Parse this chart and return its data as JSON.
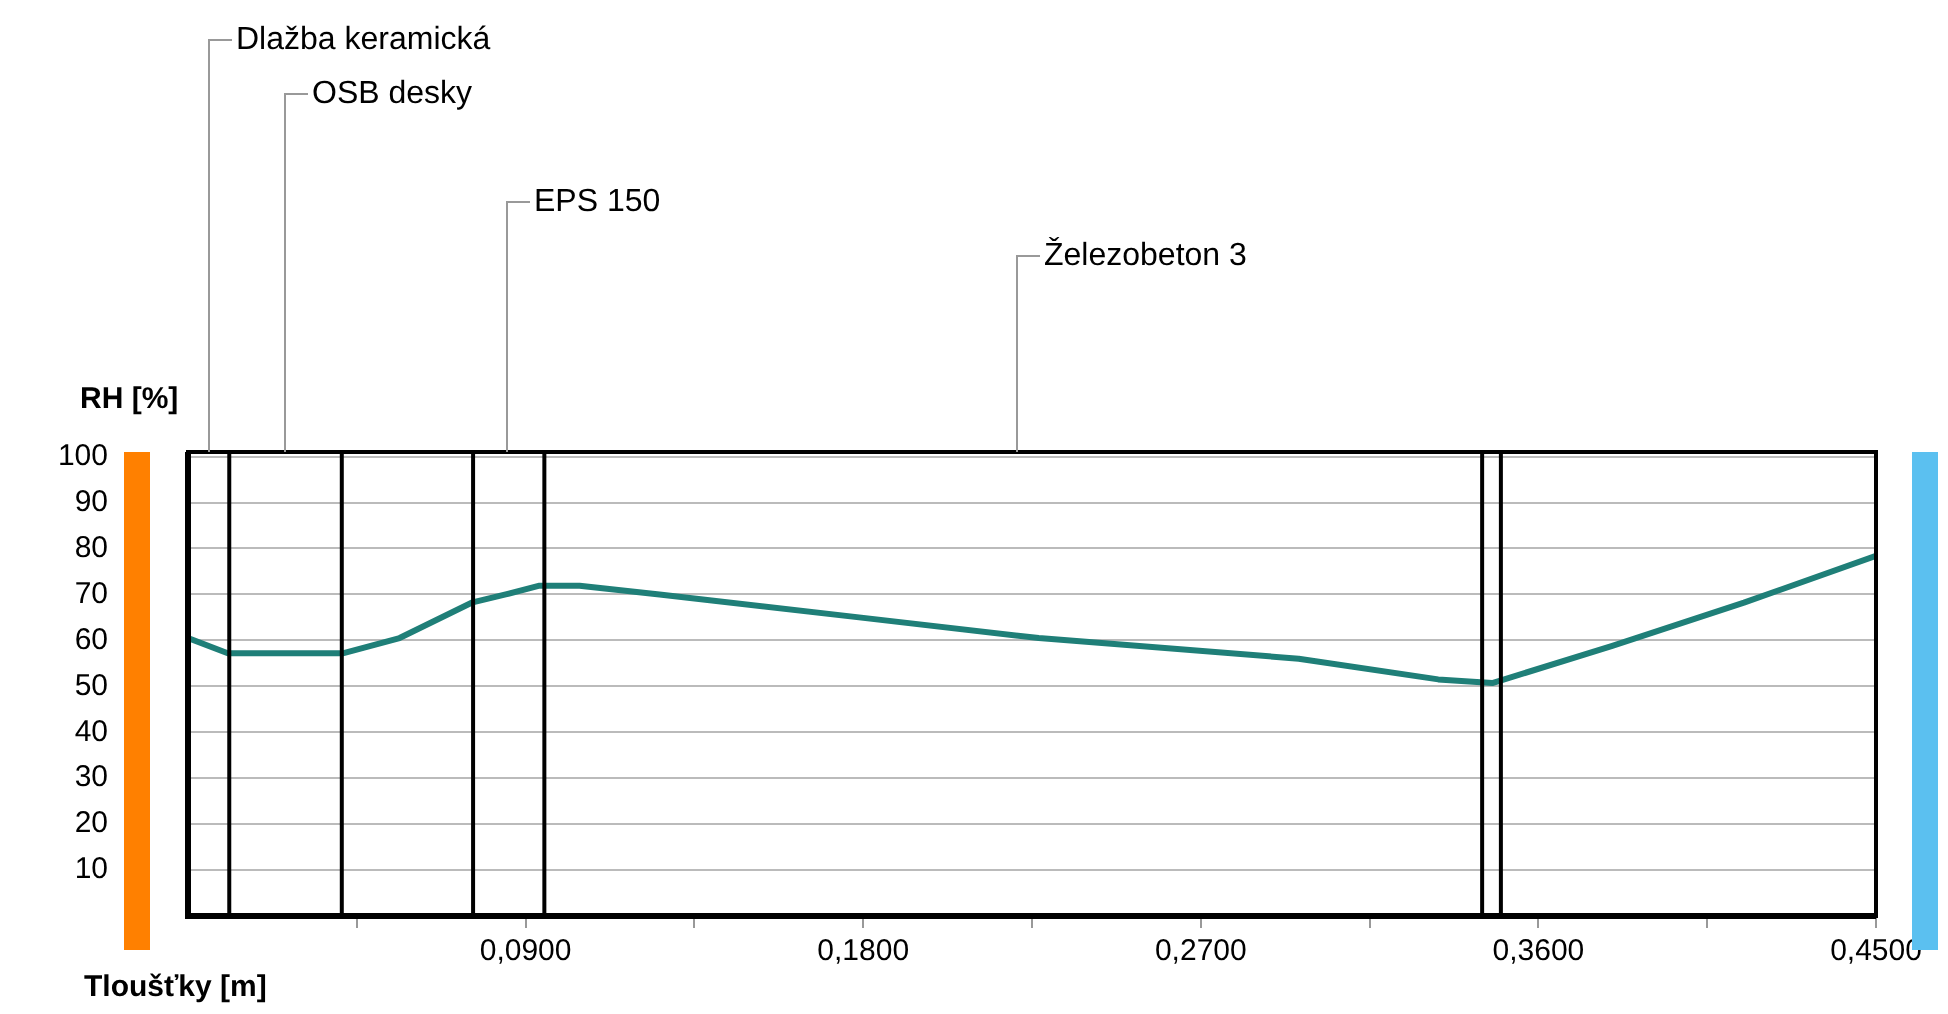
{
  "chart_data": {
    "type": "line",
    "xlabel": "Tloušťky [m]",
    "ylabel": "RH [%]",
    "x": [
      0,
      0.0106,
      0.0415,
      0.0564,
      0.0756,
      0.0847,
      0.0937,
      0.1044,
      0.1257,
      0.1789,
      0.2268,
      0.2961,
      0.3333,
      0.3477,
      0.3797,
      0.4148,
      0.45
    ],
    "series": [
      {
        "color": "#1f7f78",
        "values": [
          60.5,
          57.2,
          57.2,
          60.5,
          68.2,
          70,
          71.9,
          71.9,
          70,
          65,
          60.5,
          56,
          51.5,
          50.7,
          58.8,
          68.2,
          78.4
        ]
      }
    ],
    "xlim": [
      0,
      0.45
    ],
    "xticks": [
      {
        "value": 0.045,
        "label": null
      },
      {
        "value": 0.09,
        "label": "0,0900"
      },
      {
        "value": 0.135,
        "label": null
      },
      {
        "value": 0.18,
        "label": "0,1800"
      },
      {
        "value": 0.225,
        "label": null
      },
      {
        "value": 0.27,
        "label": "0,2700"
      },
      {
        "value": 0.315,
        "label": null
      },
      {
        "value": 0.36,
        "label": "0,3600"
      },
      {
        "value": 0.405,
        "label": null
      },
      {
        "value": 0.45,
        "label": "0,4500"
      }
    ],
    "ylim": [
      0,
      101
    ],
    "yticks": [
      10,
      20,
      30,
      40,
      50,
      60,
      70,
      80,
      90,
      100
    ],
    "grid": "y",
    "legend": false,
    "marker": "none",
    "line_style": "solid",
    "ref_lines": [
      {
        "axis": "x",
        "value": 0.011,
        "color": "#000000"
      },
      {
        "axis": "x",
        "value": 0.041,
        "color": "#000000"
      },
      {
        "axis": "x",
        "value": 0.076,
        "color": "#000000"
      },
      {
        "axis": "x",
        "value": 0.095,
        "color": "#000000"
      },
      {
        "axis": "x",
        "value": 0.345,
        "color": "#000000"
      },
      {
        "axis": "x",
        "value": 0.35,
        "color": "#000000"
      }
    ],
    "annotations": [
      "Dlažba keramická",
      "OSB desky",
      "EPS 150",
      "Železobeton 3"
    ]
  }
}
